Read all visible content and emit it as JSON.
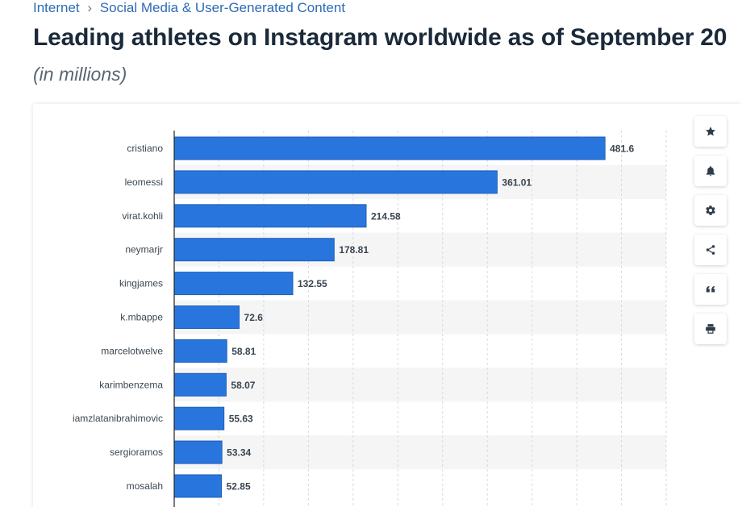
{
  "breadcrumb": {
    "items": [
      "Internet",
      "Social Media & User-Generated Content"
    ],
    "separator": "›"
  },
  "page_title": "Leading athletes on Instagram worldwide as of September 20",
  "page_subtitle": "(in millions)",
  "toolbar": {
    "icons": [
      "star-icon",
      "bell-icon",
      "gear-icon",
      "share-icon",
      "quote-icon",
      "print-icon"
    ]
  },
  "colors": {
    "bar": "#2876dd",
    "bar_stroke": "#1e5fb8",
    "stripe": "#f5f5f5",
    "link": "#2d6bb5",
    "title": "#1b2a3a"
  },
  "chart_data": {
    "type": "bar",
    "orientation": "horizontal",
    "categories": [
      "cristiano",
      "leomessi",
      "virat.kohli",
      "neymarjr",
      "kingjames",
      "k.mbappe",
      "marcelotwelve",
      "karimbenzema",
      "iamzlatanibrahimovic",
      "sergioramos",
      "mosalah"
    ],
    "values": [
      481.6,
      361.01,
      214.58,
      178.81,
      132.55,
      72.6,
      58.81,
      58.07,
      55.63,
      53.34,
      52.85
    ],
    "value_labels": [
      "481.6",
      "361.01",
      "214.58",
      "178.81",
      "132.55",
      "72.6",
      "58.81",
      "58.07",
      "55.63",
      "53.34",
      "52.85"
    ],
    "title": "Leading athletes on Instagram worldwide as of September 20",
    "subtitle": "(in millions)",
    "xlim": [
      0,
      550
    ],
    "grid": true,
    "grid_style": "dashed vertical",
    "legend": "none"
  }
}
